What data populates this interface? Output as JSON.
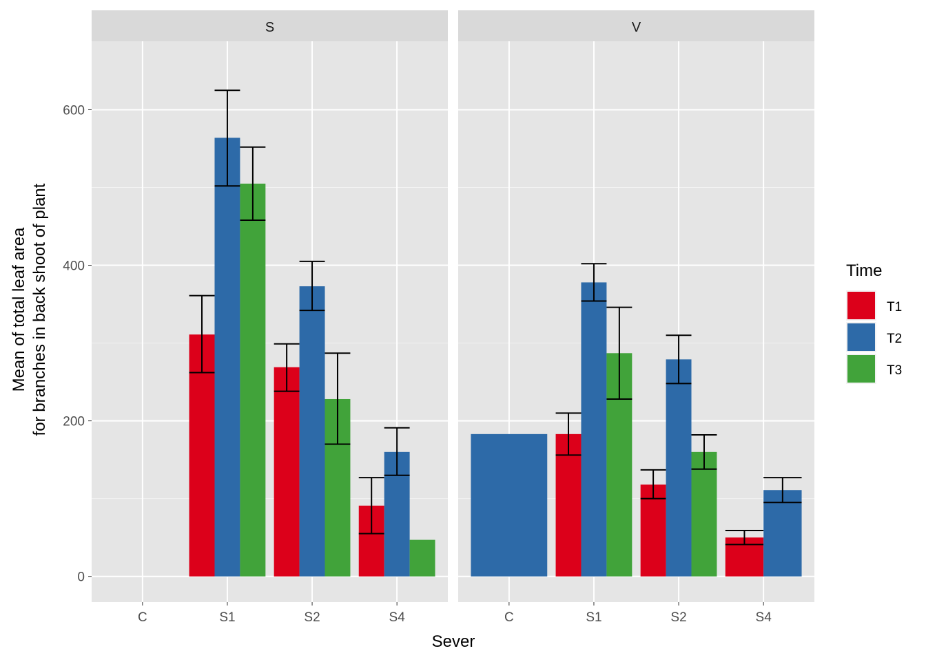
{
  "chart_data": {
    "type": "bar",
    "facets": [
      "S",
      "V"
    ],
    "categories": [
      "C",
      "S1",
      "S2",
      "S4"
    ],
    "xlabel": "Sever",
    "ylabel_lines": [
      "Mean of total leaf area",
      "for branches in back shoot of plant"
    ],
    "ylim": [
      -33,
      688
    ],
    "yticks": [
      0,
      200,
      400,
      600
    ],
    "grid": true,
    "legend": {
      "title": "Time",
      "placement": "right",
      "entries": [
        "T1",
        "T2",
        "T3"
      ]
    },
    "colors": {
      "T1": "#DC001A",
      "T2": "#2D6AA8",
      "T3": "#41A33A"
    },
    "bars": [
      {
        "facet": "S",
        "category": "S1",
        "group": "T1",
        "value": 311,
        "err_low": 262,
        "err_high": 361
      },
      {
        "facet": "S",
        "category": "S1",
        "group": "T2",
        "value": 564,
        "err_low": 502,
        "err_high": 625
      },
      {
        "facet": "S",
        "category": "S1",
        "group": "T3",
        "value": 505,
        "err_low": 458,
        "err_high": 552
      },
      {
        "facet": "S",
        "category": "S2",
        "group": "T1",
        "value": 269,
        "err_low": 238,
        "err_high": 299
      },
      {
        "facet": "S",
        "category": "S2",
        "group": "T2",
        "value": 373,
        "err_low": 342,
        "err_high": 405
      },
      {
        "facet": "S",
        "category": "S2",
        "group": "T3",
        "value": 228,
        "err_low": 170,
        "err_high": 287
      },
      {
        "facet": "S",
        "category": "S4",
        "group": "T1",
        "value": 91,
        "err_low": 55,
        "err_high": 127
      },
      {
        "facet": "S",
        "category": "S4",
        "group": "T2",
        "value": 160,
        "err_low": 130,
        "err_high": 191
      },
      {
        "facet": "S",
        "category": "S4",
        "group": "T3",
        "value": 47
      },
      {
        "facet": "V",
        "category": "C",
        "group": "T2",
        "value": 183
      },
      {
        "facet": "V",
        "category": "S1",
        "group": "T1",
        "value": 183,
        "err_low": 156,
        "err_high": 210
      },
      {
        "facet": "V",
        "category": "S1",
        "group": "T2",
        "value": 378,
        "err_low": 354,
        "err_high": 402
      },
      {
        "facet": "V",
        "category": "S1",
        "group": "T3",
        "value": 287,
        "err_low": 228,
        "err_high": 346
      },
      {
        "facet": "V",
        "category": "S2",
        "group": "T1",
        "value": 118,
        "err_low": 100,
        "err_high": 137
      },
      {
        "facet": "V",
        "category": "S2",
        "group": "T2",
        "value": 279,
        "err_low": 248,
        "err_high": 310
      },
      {
        "facet": "V",
        "category": "S2",
        "group": "T3",
        "value": 160,
        "err_low": 138,
        "err_high": 182
      },
      {
        "facet": "V",
        "category": "S4",
        "group": "T1",
        "value": 50,
        "err_low": 41,
        "err_high": 59
      },
      {
        "facet": "V",
        "category": "S4",
        "group": "T2",
        "value": 111,
        "err_low": 95,
        "err_high": 127
      }
    ]
  }
}
